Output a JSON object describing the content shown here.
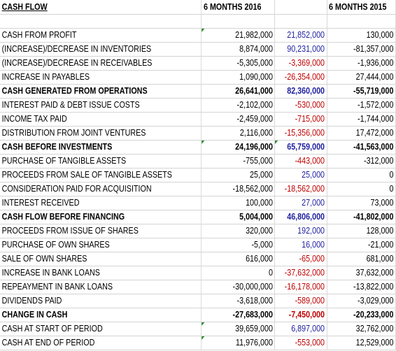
{
  "header": {
    "title": "CASH FLOW",
    "col2016": "6 MONTHS 2016",
    "col_mid": "",
    "col2015": "6 MONTHS 2015"
  },
  "rows": [
    {
      "label": "",
      "v2016": "",
      "vmid": "",
      "v2015": ""
    },
    {
      "label": "CASH FROM PROFIT",
      "v2016": "21,982,000",
      "vmid": "21,852,000",
      "v2015": "130,000"
    },
    {
      "label": "(INCREASE)/DECREASE IN INVENTORIES",
      "v2016": "8,874,000",
      "vmid": "90,231,000",
      "v2015": "-81,357,000"
    },
    {
      "label": "(INCREASE)/DECREASE IN RECEIVABLES",
      "v2016": "-5,305,000",
      "vmid": "-3,369,000",
      "v2015": "-1,936,000"
    },
    {
      "label": "INCREASE IN PAYABLES",
      "v2016": "1,090,000",
      "vmid": "-26,354,000",
      "v2015": "27,444,000"
    },
    {
      "label": "CASH GENERATED FROM OPERATIONS",
      "v2016": "26,641,000",
      "vmid": "82,360,000",
      "v2015": "-55,719,000"
    },
    {
      "label": "INTEREST PAID & DEBT ISSUE COSTS",
      "v2016": "-2,102,000",
      "vmid": "-530,000",
      "v2015": "-1,572,000"
    },
    {
      "label": "INCOME TAX PAID",
      "v2016": "-2,459,000",
      "vmid": "-715,000",
      "v2015": "-1,744,000"
    },
    {
      "label": "DISTRIBUTION FROM JOINT VENTURES",
      "v2016": "2,116,000",
      "vmid": "-15,356,000",
      "v2015": "17,472,000"
    },
    {
      "label": "CASH BEFORE INVESTMENTS",
      "v2016": "24,196,000",
      "vmid": "65,759,000",
      "v2015": "-41,563,000"
    },
    {
      "label": "PURCHASE OF TANGIBLE ASSETS",
      "v2016": "-755,000",
      "vmid": "-443,000",
      "v2015": "-312,000"
    },
    {
      "label": "PROCEEDS FROM SALE OF TANGIBLE ASSETS",
      "v2016": "25,000",
      "vmid": "25,000",
      "v2015": "0"
    },
    {
      "label": "CONSIDERATION PAID FOR ACQUISITION",
      "v2016": "-18,562,000",
      "vmid": "-18,562,000",
      "v2015": "0"
    },
    {
      "label": "INTEREST RECEIVED",
      "v2016": "100,000",
      "vmid": "27,000",
      "v2015": "73,000"
    },
    {
      "label": "CASH FLOW BEFORE FINANCING",
      "v2016": "5,004,000",
      "vmid": "46,806,000",
      "v2015": "-41,802,000"
    },
    {
      "label": "PROCEEDS FROM ISSUE OF SHARES",
      "v2016": "320,000",
      "vmid": "192,000",
      "v2015": "128,000"
    },
    {
      "label": "PURCHASE OF OWN SHARES",
      "v2016": "-5,000",
      "vmid": "16,000",
      "v2015": "-21,000"
    },
    {
      "label": "SALE OF OWN SHARES",
      "v2016": "616,000",
      "vmid": "-65,000",
      "v2015": "681,000"
    },
    {
      "label": "INCREASE IN BANK LOANS",
      "v2016": "0",
      "vmid": "-37,632,000",
      "v2015": "37,632,000"
    },
    {
      "label": "REPEAYMENT IN BANK LOANS",
      "v2016": "-30,000,000",
      "vmid": "-16,178,000",
      "v2015": "-13,822,000"
    },
    {
      "label": "DIVIDENDS PAID",
      "v2016": "-3,618,000",
      "vmid": "-589,000",
      "v2015": "-3,029,000"
    },
    {
      "label": "CHANGE IN CASH",
      "v2016": "-27,683,000",
      "vmid": "-7,450,000",
      "v2015": "-20,233,000"
    },
    {
      "label": "CASH AT START OF PERIOD",
      "v2016": "39,659,000",
      "vmid": "6,897,000",
      "v2015": "32,762,000"
    },
    {
      "label": "CASH AT END OF PERIOD",
      "v2016": "11,976,000",
      "vmid": "-553,000",
      "v2015": "12,529,000"
    }
  ],
  "colors": {
    "positive_delta": "#1f1fa0",
    "negative_delta": "#c00000",
    "error_flag": "#2e8b2e",
    "gridline": "#d4d4d4"
  }
}
